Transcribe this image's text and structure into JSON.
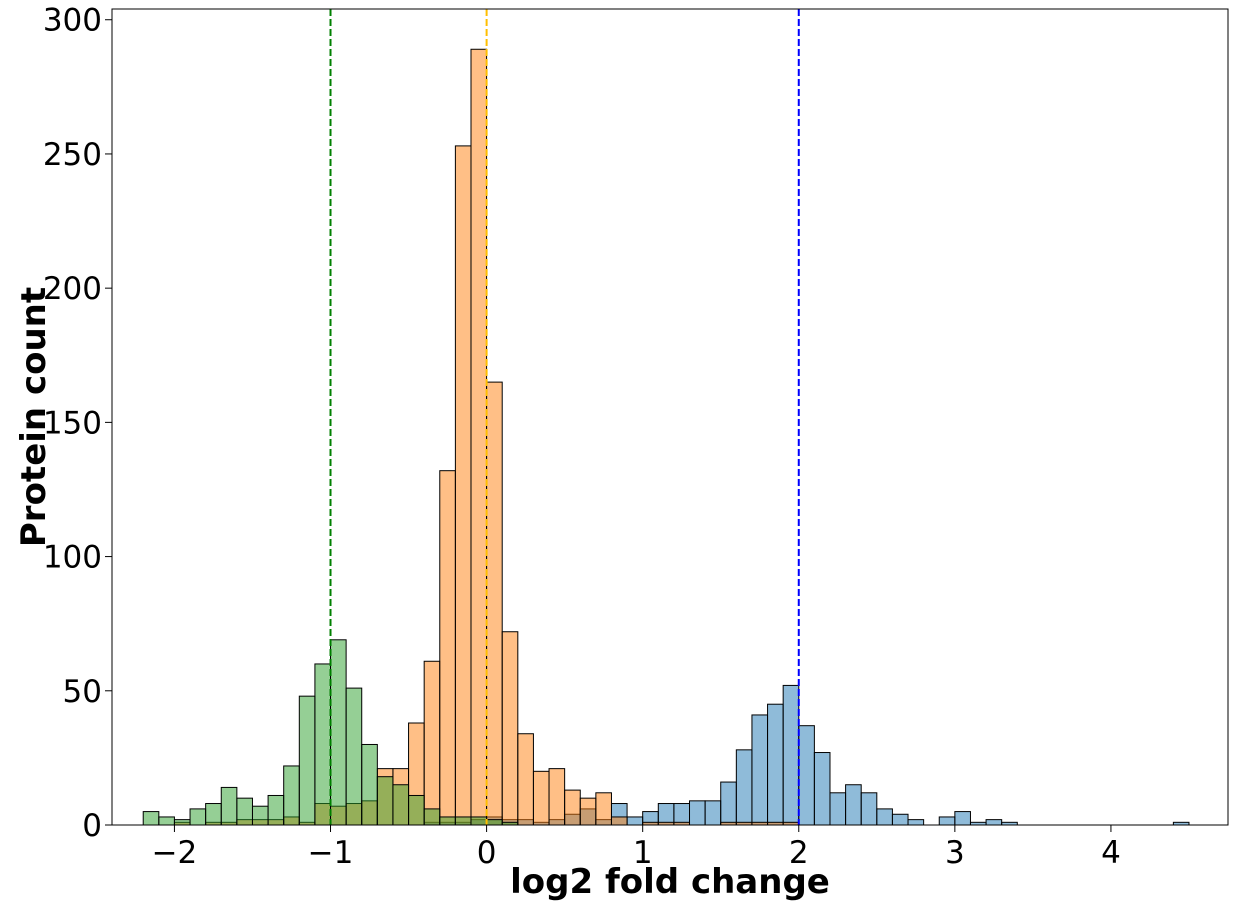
{
  "chart_data": {
    "type": "bar",
    "subtype": "overlaid-histogram",
    "title": "",
    "xlabel": "log2 fold change",
    "ylabel": "Protein count",
    "xlim": [
      -2.4,
      4.75
    ],
    "ylim": [
      0,
      304
    ],
    "xticks": [
      -2,
      -1,
      0,
      1,
      2,
      3,
      4
    ],
    "xtick_labels": [
      "−2",
      "−1",
      "0",
      "1",
      "2",
      "3",
      "4"
    ],
    "yticks": [
      0,
      50,
      100,
      150,
      200,
      250,
      300
    ],
    "ytick_labels": [
      "0",
      "50",
      "100",
      "150",
      "200",
      "250",
      "300"
    ],
    "grid": false,
    "legend": "none",
    "bin_width": 0.1,
    "vlines": [
      {
        "x": -1,
        "color": "#008000",
        "style": "dashed"
      },
      {
        "x": 0,
        "color": "#ffbf00",
        "style": "dashed"
      },
      {
        "x": 2,
        "color": "#0000ff",
        "style": "dashed"
      }
    ],
    "series": [
      {
        "color": "#1f77b4",
        "bins": [
          [
            -0.4,
            1
          ],
          [
            -0.3,
            1
          ],
          [
            -0.2,
            1
          ],
          [
            -0.1,
            2
          ],
          [
            0.0,
            3
          ],
          [
            0.1,
            2
          ],
          [
            0.2,
            2
          ],
          [
            0.3,
            1
          ],
          [
            0.4,
            2
          ],
          [
            0.5,
            4
          ],
          [
            0.6,
            6
          ],
          [
            0.7,
            2
          ],
          [
            0.8,
            8
          ],
          [
            0.9,
            3
          ],
          [
            1.0,
            5
          ],
          [
            1.1,
            8
          ],
          [
            1.2,
            8
          ],
          [
            1.3,
            9
          ],
          [
            1.4,
            9
          ],
          [
            1.5,
            16
          ],
          [
            1.6,
            28
          ],
          [
            1.7,
            41
          ],
          [
            1.8,
            45
          ],
          [
            1.9,
            52
          ],
          [
            2.0,
            37
          ],
          [
            2.1,
            27
          ],
          [
            2.2,
            12
          ],
          [
            2.3,
            15
          ],
          [
            2.4,
            12
          ],
          [
            2.5,
            6
          ],
          [
            2.6,
            4
          ],
          [
            2.7,
            2
          ],
          [
            2.9,
            3
          ],
          [
            3.0,
            5
          ],
          [
            3.1,
            1
          ],
          [
            3.2,
            2
          ],
          [
            3.3,
            1
          ],
          [
            4.4,
            1
          ]
        ]
      },
      {
        "color": "#ff7f0e",
        "bins": [
          [
            -2.0,
            1
          ],
          [
            -1.9,
            0
          ],
          [
            -1.8,
            1
          ],
          [
            -1.7,
            1
          ],
          [
            -1.6,
            2
          ],
          [
            -1.5,
            2
          ],
          [
            -1.4,
            2
          ],
          [
            -1.3,
            3
          ],
          [
            -1.2,
            1
          ],
          [
            -1.1,
            8
          ],
          [
            -1.0,
            7
          ],
          [
            -0.9,
            8
          ],
          [
            -0.8,
            9
          ],
          [
            -0.7,
            21
          ],
          [
            -0.6,
            21
          ],
          [
            -0.5,
            38
          ],
          [
            -0.4,
            61
          ],
          [
            -0.3,
            132
          ],
          [
            -0.2,
            253
          ],
          [
            -0.1,
            289
          ],
          [
            0.0,
            165
          ],
          [
            0.1,
            72
          ],
          [
            0.2,
            34
          ],
          [
            0.3,
            20
          ],
          [
            0.4,
            21
          ],
          [
            0.5,
            13
          ],
          [
            0.6,
            10
          ],
          [
            0.7,
            12
          ],
          [
            0.8,
            3
          ],
          [
            1.0,
            1
          ],
          [
            1.1,
            1
          ],
          [
            1.2,
            1
          ],
          [
            1.5,
            1
          ],
          [
            1.6,
            1
          ],
          [
            1.7,
            1
          ],
          [
            1.8,
            1
          ],
          [
            1.9,
            1
          ]
        ]
      },
      {
        "color": "#2ca02c",
        "bins": [
          [
            -2.2,
            5
          ],
          [
            -2.1,
            3
          ],
          [
            -2.0,
            2
          ],
          [
            -1.9,
            6
          ],
          [
            -1.8,
            8
          ],
          [
            -1.7,
            14
          ],
          [
            -1.6,
            10
          ],
          [
            -1.5,
            7
          ],
          [
            -1.4,
            11
          ],
          [
            -1.3,
            22
          ],
          [
            -1.2,
            48
          ],
          [
            -1.1,
            60
          ],
          [
            -1.0,
            69
          ],
          [
            -0.9,
            51
          ],
          [
            -0.8,
            30
          ],
          [
            -0.7,
            18
          ],
          [
            -0.6,
            15
          ],
          [
            -0.5,
            11
          ],
          [
            -0.4,
            6
          ],
          [
            -0.3,
            3
          ],
          [
            -0.2,
            3
          ],
          [
            -0.1,
            3
          ],
          [
            0.0,
            2
          ],
          [
            0.1,
            1
          ]
        ]
      }
    ]
  }
}
